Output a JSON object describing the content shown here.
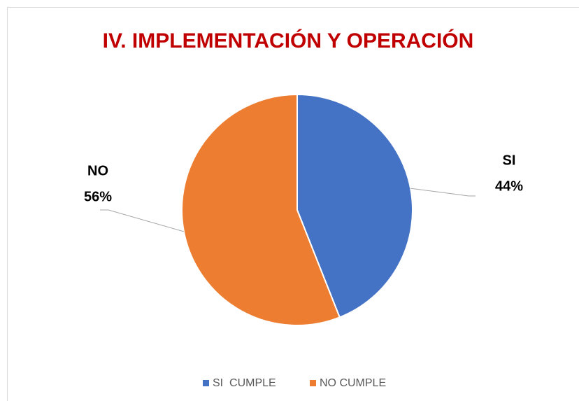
{
  "chart_data": {
    "type": "pie",
    "title": "IV. IMPLEMENTACIÓN Y OPERACIÓN",
    "categories": [
      "SI  CUMPLE",
      "NO CUMPLE"
    ],
    "data_label_names": [
      "SI",
      "NO"
    ],
    "values": [
      44,
      56
    ],
    "value_labels": [
      "44%",
      "56%"
    ],
    "colors": [
      "#4472c4",
      "#ed7d31"
    ],
    "legend": "bottom"
  }
}
